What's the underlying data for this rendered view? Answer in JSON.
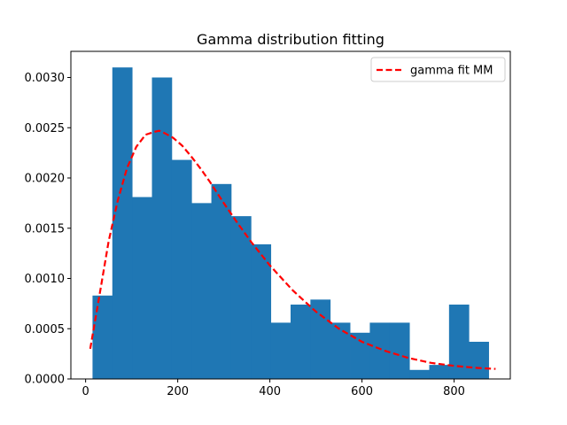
{
  "chart_data": {
    "type": "bar",
    "title": "Gamma distribution fitting",
    "xlabel": "",
    "ylabel": "",
    "xlim": [
      -32,
      922
    ],
    "ylim": [
      0,
      0.00326
    ],
    "grid": false,
    "legend_placement": "top-right",
    "x_ticks": [
      0,
      200,
      400,
      600,
      800
    ],
    "x_tick_labels": [
      "0",
      "200",
      "400",
      "600",
      "800"
    ],
    "y_ticks": [
      0,
      0.0005,
      0.001,
      0.0015,
      0.002,
      0.0025,
      0.003
    ],
    "y_tick_labels": [
      "0.0000",
      "0.0005",
      "0.0010",
      "0.0015",
      "0.0020",
      "0.0025",
      "0.0030"
    ],
    "histogram": {
      "color": "#1f77b4",
      "bin_edges": [
        15,
        58,
        101,
        144,
        187,
        230,
        273,
        316,
        359,
        402,
        445,
        488,
        531,
        574,
        617,
        660,
        703,
        746,
        789,
        832,
        875
      ],
      "density": [
        0.00083,
        0.0031,
        0.00181,
        0.003,
        0.00218,
        0.00175,
        0.00194,
        0.00162,
        0.00134,
        0.00056,
        0.00074,
        0.00079,
        0.00056,
        0.00046,
        0.00056,
        0.00056,
        9e-05,
        0.00014,
        0.00074,
        0.00037
      ]
    },
    "series": [
      {
        "name": "gamma fit MM",
        "color": "#ff0000",
        "style": "dashed",
        "x": [
          10,
          30,
          50,
          70,
          90,
          110,
          130,
          150,
          160,
          170,
          190,
          210,
          230,
          250,
          270,
          300,
          330,
          360,
          400,
          450,
          500,
          550,
          600,
          650,
          700,
          750,
          800,
          850,
          890
        ],
        "y": [
          0.0003,
          0.00083,
          0.00137,
          0.00178,
          0.0021,
          0.00231,
          0.00243,
          0.00246,
          0.00247,
          0.00245,
          0.0024,
          0.00232,
          0.00221,
          0.00209,
          0.00196,
          0.00175,
          0.00155,
          0.00136,
          0.00113,
          0.00088,
          0.00067,
          0.0005,
          0.00037,
          0.00028,
          0.00021,
          0.00016,
          0.00013,
          0.00011,
          0.0001
        ]
      }
    ]
  }
}
